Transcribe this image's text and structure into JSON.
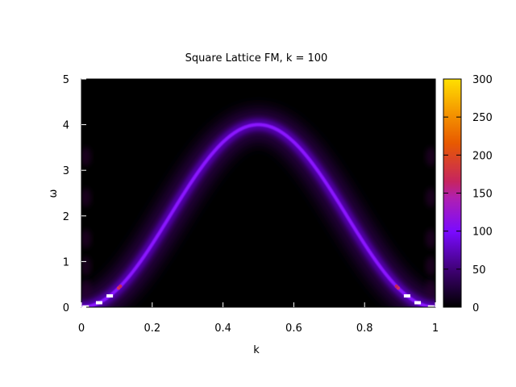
{
  "chart_data": {
    "type": "heatmap",
    "title": "Square Lattice FM, k = 100",
    "xlabel": "k",
    "ylabel": "ω",
    "xlim": [
      0,
      1
    ],
    "ylim": [
      0,
      5
    ],
    "x_ticks": [
      "0",
      "0.2",
      "0.4",
      "0.6",
      "0.8",
      "1"
    ],
    "y_ticks": [
      "0",
      "1",
      "2",
      "3",
      "4",
      "5"
    ],
    "colorbar": {
      "range": [
        0,
        300
      ],
      "ticks": [
        "0",
        "50",
        "100",
        "150",
        "200",
        "250",
        "300"
      ],
      "colormap": [
        "#000000",
        "#7a0aff",
        "#c62460",
        "#e85a00",
        "#ffe000"
      ]
    },
    "dispersion": {
      "formula": "omega = 4 * sin^2(pi * k)",
      "peak": {
        "k": 0.5,
        "omega": 4.0
      },
      "typical_intensity": 90
    },
    "background": "#000000"
  }
}
